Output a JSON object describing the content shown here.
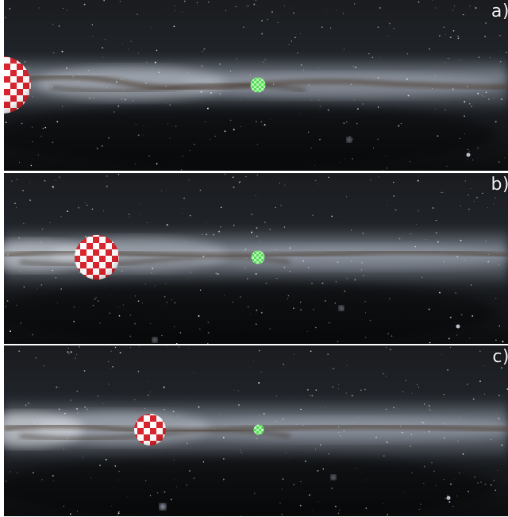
{
  "panels": [
    {
      "label": "a)"
    },
    {
      "label": "b)"
    },
    {
      "label": "c)"
    }
  ],
  "colors": {
    "background": "#ffffff",
    "sky": "#0e1012",
    "milky_way": "#c9d2e0",
    "dust_lane": "#4a3a2e",
    "large_sphere_red": "#d9232c",
    "large_sphere_white": "#ffffff",
    "small_sphere_green": "#55dd55",
    "small_sphere_light": "#b8f5b8",
    "label": "#f2f2f2"
  }
}
